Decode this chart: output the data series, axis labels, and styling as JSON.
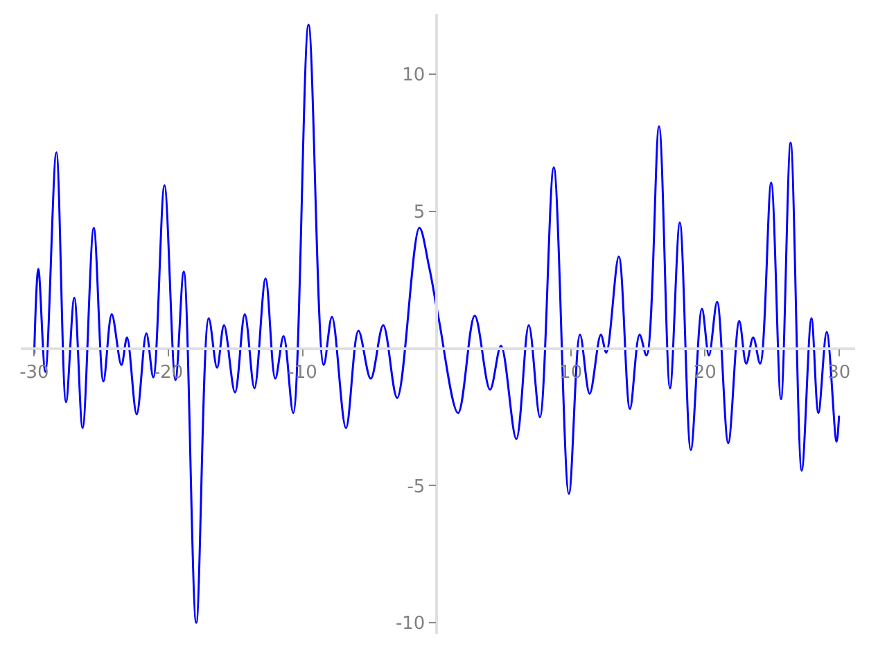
{
  "chart_data": {
    "type": "line",
    "x": [
      -30.0,
      -29.69,
      -29.17,
      -28.35,
      -27.63,
      -27.01,
      -26.39,
      -25.56,
      -24.84,
      -24.22,
      -23.5,
      -23.08,
      -22.36,
      -21.64,
      -21.12,
      -20.29,
      -19.47,
      -18.85,
      -17.92,
      -16.99,
      -16.37,
      -15.85,
      -15.03,
      -14.3,
      -13.58,
      -12.75,
      -12.03,
      -11.41,
      -10.69,
      -9.55,
      -8.42,
      -7.8,
      -6.76,
      -5.83,
      -4.91,
      -3.98,
      -2.94,
      -1.29,
      -0.57,
      0.15,
      1.6,
      2.84,
      3.98,
      4.8,
      5.94,
      6.87,
      7.7,
      8.73,
      9.86,
      10.69,
      11.41,
      12.24,
      12.65,
      13.58,
      14.41,
      15.13,
      15.65,
      16.58,
      17.4,
      18.13,
      18.95,
      19.78,
      20.3,
      20.91,
      21.74,
      22.56,
      23.08,
      23.6,
      24.12,
      24.94,
      25.67,
      26.39,
      27.22,
      27.94,
      28.46,
      29.08,
      29.81,
      30.0
    ],
    "series": [
      {
        "color": "#0000ff",
        "values": [
          -0.2,
          2.9,
          -0.85,
          7.15,
          -1.95,
          1.85,
          -2.9,
          4.4,
          -1.2,
          1.25,
          -0.6,
          0.4,
          -2.4,
          0.55,
          -1.05,
          5.95,
          -1.15,
          2.8,
          -10.0,
          1.1,
          -0.7,
          0.85,
          -1.6,
          1.25,
          -1.45,
          2.55,
          -1.1,
          0.45,
          -2.35,
          11.8,
          -0.6,
          1.15,
          -2.9,
          0.65,
          -1.1,
          0.85,
          -1.8,
          4.4,
          3.0,
          1.1,
          -2.35,
          1.2,
          -1.5,
          0.1,
          -3.3,
          0.85,
          -2.5,
          6.6,
          -5.3,
          0.5,
          -1.65,
          0.5,
          -0.15,
          3.35,
          -2.2,
          0.5,
          -0.25,
          8.1,
          -1.45,
          4.6,
          -3.7,
          1.45,
          -0.25,
          1.7,
          -3.45,
          1.0,
          -0.55,
          0.4,
          -0.55,
          6.05,
          -1.85,
          7.5,
          -4.45,
          1.1,
          -2.35,
          0.6,
          -3.4,
          -2.45
        ]
      }
    ],
    "xlim": [
      -31,
      31.2
    ],
    "ylim": [
      -10.4,
      12.2
    ],
    "xticks": [
      -30,
      -20,
      -10,
      10,
      20,
      30
    ],
    "yticks": [
      -10,
      -5,
      5,
      10
    ],
    "marker": "none",
    "line_style": "solid"
  }
}
